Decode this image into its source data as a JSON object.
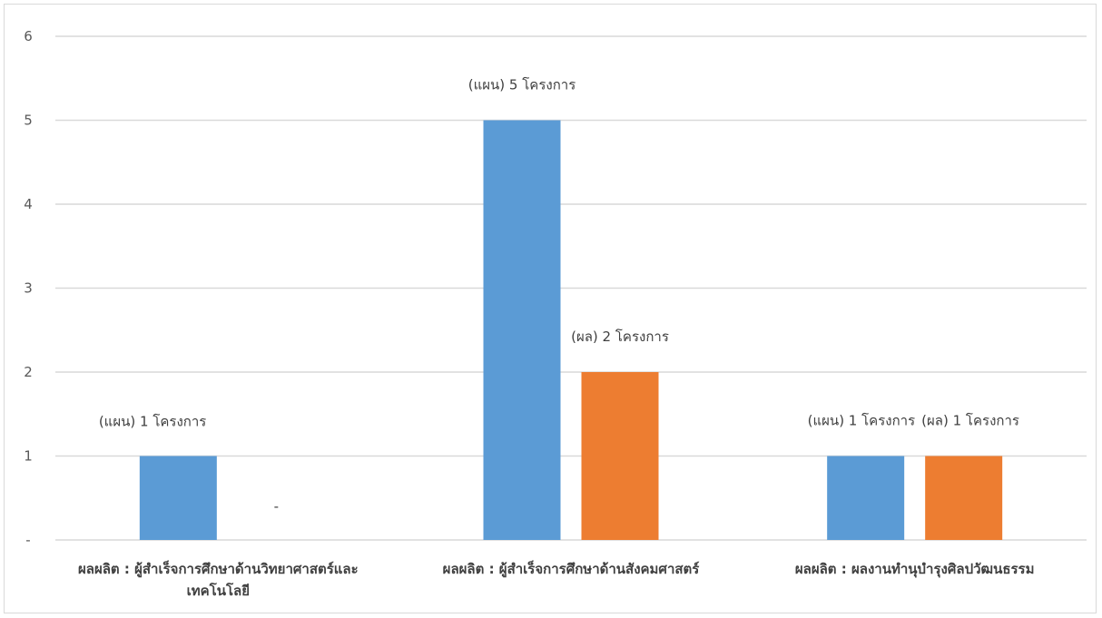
{
  "chart_data": {
    "type": "bar",
    "categories": [
      [
        "ผลผลิต : ผู้สำเร็จการศึกษาด้านวิทยาศาสตร์และ",
        "เทคโนโลยี"
      ],
      [
        "ผลผลิต : ผู้สำเร็จการศึกษาด้านสังคมศาสตร์"
      ],
      [
        "ผลผลิต : ผลงานทำนุบำรุงศิลปวัฒนธรรม"
      ]
    ],
    "series": [
      {
        "color": "#5b9bd5",
        "values": [
          1,
          5,
          1
        ],
        "labels": [
          "(แผน)  1  โครงการ",
          "(แผน) 5 โครงการ",
          "(แผน) 1 โครงการ"
        ]
      },
      {
        "color": "#ed7d31",
        "values": [
          0,
          2,
          1
        ],
        "labels": [
          "-",
          "(ผล) 2 โครงการ",
          "(ผล) 1 โครงการ"
        ]
      }
    ],
    "ylim": [
      0,
      6
    ],
    "yticks": [
      "-",
      "1",
      "2",
      "3",
      "4",
      "5",
      "6"
    ],
    "grid": true,
    "gridColor": "#d9d9d9",
    "title": "",
    "xlabel": "",
    "ylabel": ""
  }
}
